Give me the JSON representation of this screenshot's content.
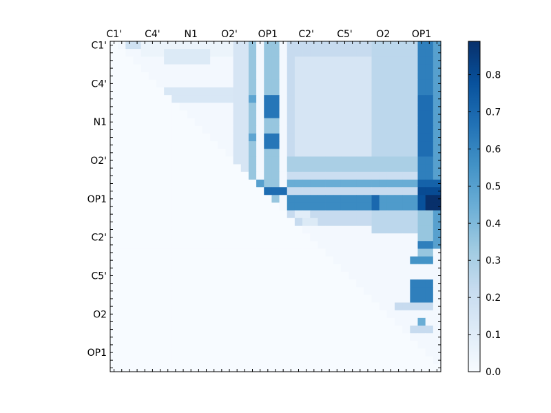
{
  "chart_data": {
    "type": "heatmap",
    "colormap": "Blues",
    "n": 43,
    "x_tick_labels": [
      "C1'",
      "C4'",
      "N1",
      "O2'",
      "OP1",
      "C2'",
      "C5'",
      "O2",
      "OP1"
    ],
    "y_tick_labels": [
      "C1'",
      "C4'",
      "N1",
      "O2'",
      "OP1",
      "C2'",
      "C5'",
      "O2",
      "OP1"
    ],
    "tick_label_cells": [
      0,
      5,
      10,
      15,
      20,
      25,
      30,
      35,
      40
    ],
    "x_tick_positions_top": true,
    "colorbar": {
      "min": 0.0,
      "max": 0.89,
      "ticks": [
        "0.0",
        "0.1",
        "0.2",
        "0.3",
        "0.4",
        "0.5",
        "0.6",
        "0.7",
        "0.8"
      ]
    },
    "structure": "upper-triangular correlation matrix; lower triangle and diagonal ~0",
    "patches": [
      {
        "r": [
          0,
          0
        ],
        "c": [
          2,
          3
        ],
        "v": 0.18
      },
      {
        "r": [
          0,
          1
        ],
        "c": [
          4,
          15
        ],
        "v": 0.05
      },
      {
        "r": [
          1,
          2
        ],
        "c": [
          7,
          12
        ],
        "v": 0.12
      },
      {
        "r": [
          0,
          21
        ],
        "c": [
          16,
          18
        ],
        "v": 0.15
      },
      {
        "r": [
          0,
          23
        ],
        "c": [
          23,
          42
        ],
        "v": 0.22
      },
      {
        "r": [
          2,
          19
        ],
        "c": [
          24,
          33
        ],
        "v": 0.15
      },
      {
        "r": [
          0,
          24
        ],
        "c": [
          34,
          39
        ],
        "v": 0.25
      },
      {
        "r": [
          6,
          7
        ],
        "c": [
          7,
          15
        ],
        "v": 0.14
      },
      {
        "r": [
          0,
          21
        ],
        "c": [
          18,
          18
        ],
        "v": 0.35
      },
      {
        "r": [
          0,
          22
        ],
        "c": [
          20,
          21
        ],
        "v": 0.35
      },
      {
        "r": [
          0,
          8
        ],
        "c": [
          40,
          40
        ],
        "v": 0.55
      },
      {
        "r": [
          0,
          26
        ],
        "c": [
          40,
          41
        ],
        "v": 0.62
      },
      {
        "r": [
          0,
          26
        ],
        "c": [
          42,
          42
        ],
        "v": 0.5
      },
      {
        "r": [
          7,
          14
        ],
        "c": [
          40,
          41
        ],
        "v": 0.68
      },
      {
        "r": [
          7,
          9
        ],
        "c": [
          20,
          21
        ],
        "v": 0.65
      },
      {
        "r": [
          12,
          13
        ],
        "c": [
          20,
          21
        ],
        "v": 0.65
      },
      {
        "r": [
          7,
          7
        ],
        "c": [
          18,
          18
        ],
        "v": 0.48
      },
      {
        "r": [
          12,
          12
        ],
        "c": [
          18,
          18
        ],
        "v": 0.48
      },
      {
        "r": [
          15,
          16
        ],
        "c": [
          23,
          39
        ],
        "v": 0.3
      },
      {
        "r": [
          17,
          17
        ],
        "c": [
          23,
          39
        ],
        "v": 0.2
      },
      {
        "r": [
          18,
          18
        ],
        "c": [
          23,
          39
        ],
        "v": 0.45
      },
      {
        "r": [
          18,
          18
        ],
        "c": [
          40,
          42
        ],
        "v": 0.72
      },
      {
        "r": [
          18,
          18
        ],
        "c": [
          19,
          19
        ],
        "v": 0.5
      },
      {
        "r": [
          19,
          19
        ],
        "c": [
          20,
          22
        ],
        "v": 0.68
      },
      {
        "r": [
          19,
          19
        ],
        "c": [
          23,
          39
        ],
        "v": 0.22
      },
      {
        "r": [
          19,
          19
        ],
        "c": [
          40,
          42
        ],
        "v": 0.8
      },
      {
        "r": [
          20,
          21
        ],
        "c": [
          23,
          33
        ],
        "v": 0.58
      },
      {
        "r": [
          20,
          21
        ],
        "c": [
          34,
          34
        ],
        "v": 0.7
      },
      {
        "r": [
          20,
          21
        ],
        "c": [
          35,
          39
        ],
        "v": 0.52
      },
      {
        "r": [
          20,
          21
        ],
        "c": [
          40,
          40
        ],
        "v": 0.78
      },
      {
        "r": [
          20,
          21
        ],
        "c": [
          41,
          42
        ],
        "v": 0.89
      },
      {
        "r": [
          22,
          22
        ],
        "c": [
          24,
          25
        ],
        "v": 0.1
      },
      {
        "r": [
          23,
          23
        ],
        "c": [
          25,
          26
        ],
        "v": 0.12
      },
      {
        "r": [
          22,
          28
        ],
        "c": [
          40,
          41
        ],
        "v": 0.35
      },
      {
        "r": [
          26,
          26
        ],
        "c": [
          40,
          41
        ],
        "v": 0.62
      },
      {
        "r": [
          28,
          28
        ],
        "c": [
          39,
          41
        ],
        "v": 0.55
      },
      {
        "r": [
          31,
          33
        ],
        "c": [
          39,
          41
        ],
        "v": 0.62
      },
      {
        "r": [
          34,
          34
        ],
        "c": [
          37,
          41
        ],
        "v": 0.22
      },
      {
        "r": [
          36,
          36
        ],
        "c": [
          40,
          40
        ],
        "v": 0.45
      },
      {
        "r": [
          37,
          37
        ],
        "c": [
          39,
          41
        ],
        "v": 0.22
      }
    ]
  }
}
